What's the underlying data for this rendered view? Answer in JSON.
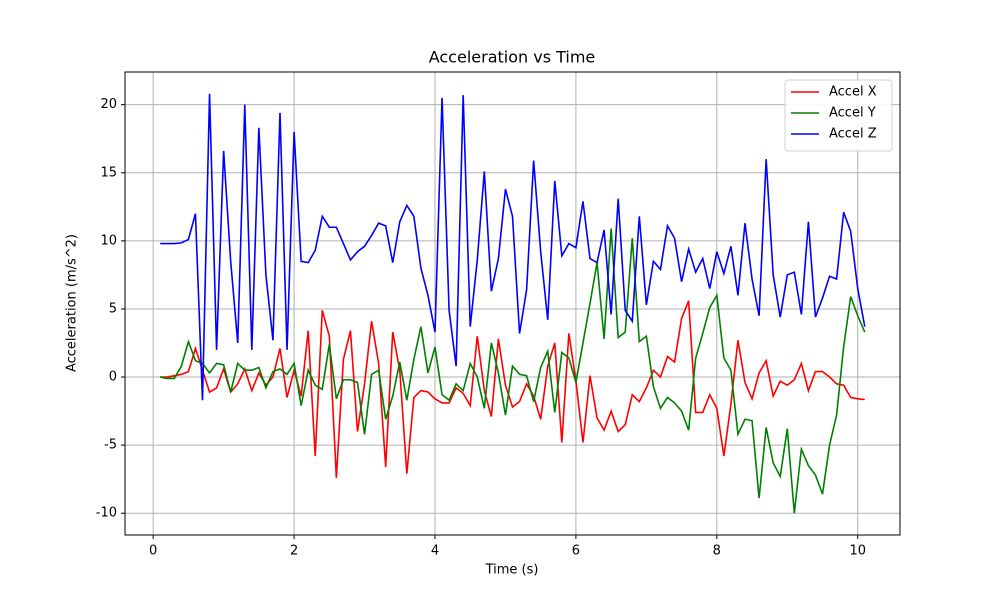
{
  "chart_data": {
    "type": "line",
    "title": "Acceleration vs Time",
    "xlabel": "Time (s)",
    "ylabel": "Acceleration (m/s^2)",
    "x": [
      0.1,
      0.2,
      0.3,
      0.4,
      0.5,
      0.6,
      0.7,
      0.8,
      0.9,
      1.0,
      1.1,
      1.2,
      1.3,
      1.4,
      1.5,
      1.6,
      1.7,
      1.8,
      1.9,
      2.0,
      2.1,
      2.2,
      2.3,
      2.4,
      2.5,
      2.6,
      2.7,
      2.8,
      2.9,
      3.0,
      3.1,
      3.2,
      3.3,
      3.4,
      3.5,
      3.6,
      3.7,
      3.8,
      3.9,
      4.0,
      4.1,
      4.2,
      4.3,
      4.4,
      4.5,
      4.6,
      4.7,
      4.8,
      4.9,
      5.0,
      5.1,
      5.2,
      5.3,
      5.4,
      5.5,
      5.6,
      5.7,
      5.8,
      5.9,
      6.0,
      6.1,
      6.2,
      6.3,
      6.4,
      6.5,
      6.6,
      6.7,
      6.8,
      6.9,
      7.0,
      7.1,
      7.2,
      7.3,
      7.4,
      7.5,
      7.6,
      7.7,
      7.8,
      7.9,
      8.0,
      8.1,
      8.2,
      8.3,
      8.4,
      8.5,
      8.6,
      8.7,
      8.8,
      8.9,
      9.0,
      9.1,
      9.2,
      9.3,
      9.4,
      9.5,
      9.6,
      9.7,
      9.8,
      9.9,
      10.0,
      10.1
    ],
    "series": [
      {
        "name": "Accel X",
        "color": "#ff0000",
        "values": [
          0.0,
          0.0,
          0.1,
          0.2,
          0.4,
          2.1,
          0.5,
          -1.1,
          -0.8,
          0.6,
          -1.1,
          -0.5,
          0.6,
          -1.0,
          0.3,
          -0.6,
          0.0,
          2.1,
          -1.5,
          0.5,
          -1.4,
          3.4,
          -5.8,
          4.9,
          3.0,
          -7.4,
          1.3,
          3.4,
          -4.0,
          -0.5,
          4.1,
          1.0,
          -6.6,
          3.3,
          0.5,
          -7.1,
          -1.5,
          -1.0,
          -1.1,
          -1.6,
          -1.9,
          -1.9,
          -0.8,
          -1.2,
          -2.1,
          3.0,
          -1.0,
          -2.9,
          2.8,
          -0.6,
          -2.2,
          -1.8,
          -0.5,
          -1.4,
          -3.1,
          0.8,
          2.5,
          -4.8,
          3.2,
          -0.3,
          -4.8,
          0.1,
          -3.0,
          -3.9,
          -2.5,
          -4.0,
          -3.5,
          -1.3,
          -1.8,
          -0.8,
          0.5,
          0.0,
          1.5,
          1.1,
          4.3,
          5.6,
          -2.6,
          -2.6,
          -1.3,
          -2.3,
          -5.8,
          -2.0,
          2.7,
          -0.4,
          -1.6,
          0.3,
          1.2,
          -1.4,
          -0.3,
          -0.6,
          -0.2,
          1.0,
          -1.0,
          0.4,
          0.4,
          0.0,
          -0.5,
          -0.6,
          -1.5,
          -1.6,
          -1.65
        ]
      },
      {
        "name": "Accel Y",
        "color": "#008000",
        "values": [
          0.0,
          -0.1,
          -0.1,
          0.8,
          2.6,
          1.2,
          1.0,
          0.3,
          1.0,
          0.9,
          -1.1,
          1.0,
          0.5,
          0.5,
          0.7,
          -0.8,
          0.4,
          0.6,
          0.2,
          1.0,
          -2.1,
          0.5,
          -0.6,
          -0.9,
          2.4,
          -1.6,
          -0.2,
          -0.2,
          -0.4,
          -4.2,
          0.2,
          0.5,
          -3.1,
          -1.4,
          1.1,
          -1.7,
          1.3,
          3.7,
          0.3,
          2.2,
          -1.3,
          -1.7,
          -0.5,
          -1.0,
          1.0,
          0.0,
          -2.3,
          2.5,
          0.3,
          -2.8,
          0.8,
          0.2,
          0.1,
          -1.8,
          0.7,
          1.9,
          -2.6,
          1.8,
          1.4,
          -0.4,
          2.5,
          5.4,
          8.4,
          2.8,
          10.9,
          2.9,
          3.3,
          10.2,
          2.6,
          3.0,
          -0.7,
          -2.3,
          -1.5,
          -1.9,
          -2.5,
          -3.9,
          1.4,
          3.2,
          5.1,
          6.0,
          1.4,
          0.5,
          -4.2,
          -3.1,
          -3.2,
          -8.9,
          -3.7,
          -6.3,
          -7.3,
          -3.8,
          -10.0,
          -5.3,
          -6.5,
          -7.2,
          -8.6,
          -5.0,
          -2.8,
          2.2,
          5.9,
          4.5,
          3.3
        ]
      },
      {
        "name": "Accel Z",
        "color": "#0000ff",
        "values": [
          9.8,
          9.8,
          9.8,
          9.85,
          10.1,
          12.0,
          -1.7,
          20.8,
          2.0,
          16.6,
          8.5,
          2.5,
          20.0,
          2.0,
          18.3,
          7.5,
          2.7,
          19.4,
          2.0,
          18.0,
          8.5,
          8.4,
          9.3,
          11.8,
          11.0,
          11.0,
          9.8,
          8.6,
          9.2,
          9.6,
          10.4,
          11.3,
          11.1,
          8.4,
          11.4,
          12.6,
          11.8,
          8.0,
          6.0,
          3.3,
          20.5,
          4.9,
          0.8,
          20.7,
          3.7,
          8.6,
          15.1,
          6.3,
          8.7,
          13.8,
          11.8,
          3.2,
          6.4,
          15.9,
          9.2,
          4.2,
          14.4,
          8.9,
          9.8,
          9.5,
          12.9,
          8.7,
          8.4,
          10.8,
          4.6,
          13.1,
          4.9,
          4.1,
          11.8,
          5.3,
          8.5,
          7.9,
          11.1,
          10.2,
          7.0,
          9.4,
          7.7,
          8.7,
          6.5,
          9.2,
          7.6,
          9.6,
          6.0,
          11.3,
          7.2,
          4.5,
          16.0,
          7.5,
          4.4,
          7.5,
          7.7,
          4.6,
          11.4,
          4.4,
          5.8,
          7.4,
          7.2,
          12.1,
          10.7,
          6.5,
          3.7
        ]
      }
    ],
    "xlim": [
      -0.4,
      10.6
    ],
    "ylim": [
      -11.6,
      22.4
    ],
    "xticks": [
      0,
      2,
      4,
      6,
      8,
      10
    ],
    "yticks": [
      -10,
      -5,
      0,
      5,
      10,
      15,
      20
    ],
    "grid": true,
    "legend": "upper right"
  }
}
